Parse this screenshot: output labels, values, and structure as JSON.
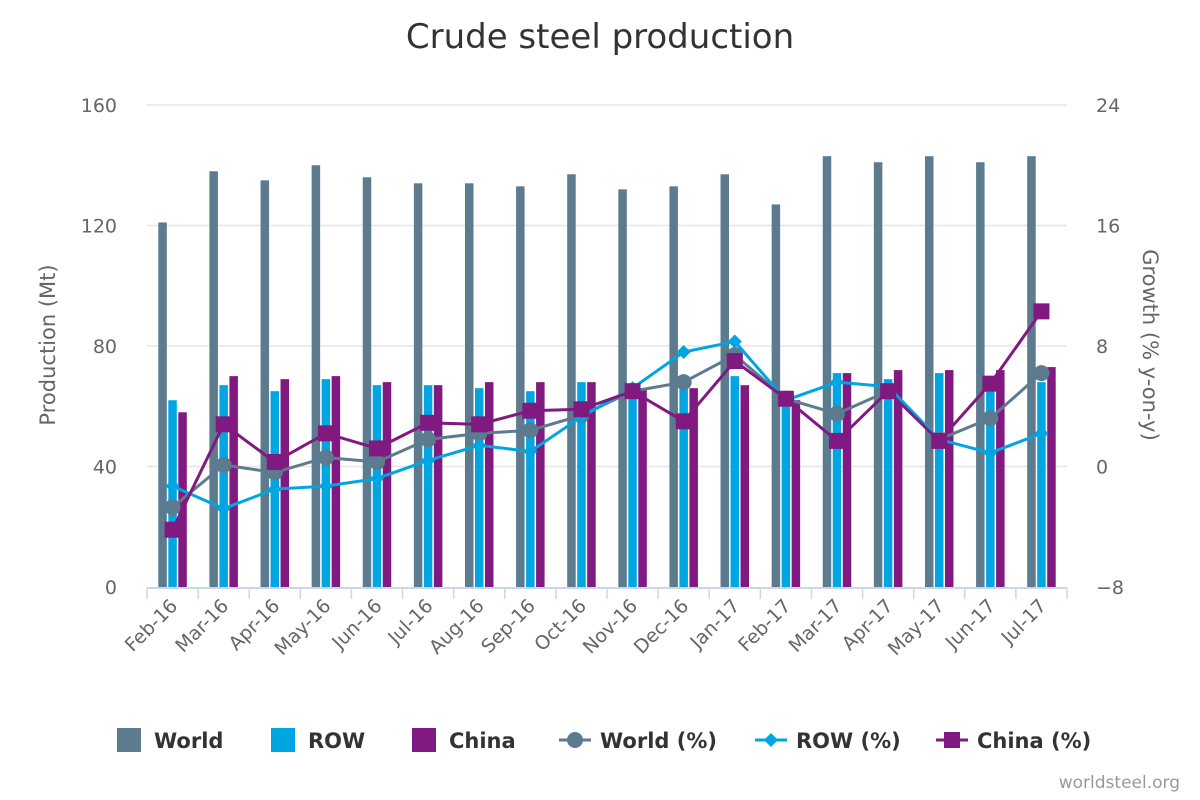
{
  "chart_data": {
    "type": "bar",
    "title": "Crude steel production",
    "ylabel_left": "Production (Mt)",
    "ylabel_right": "Growth (% y-on-y)",
    "ylim_left": [
      0,
      160
    ],
    "yticks_left": [
      "0",
      "40",
      "80",
      "120",
      "160"
    ],
    "ylim_right": [
      -8,
      24
    ],
    "yticks_right": [
      "−8",
      "0",
      "8",
      "16",
      "24"
    ],
    "grid": true,
    "legend_position": "bottom",
    "categories": [
      "Feb-16",
      "Mar-16",
      "Apr-16",
      "May-16",
      "Jun-16",
      "Jul-16",
      "Aug-16",
      "Sep-16",
      "Oct-16",
      "Nov-16",
      "Dec-16",
      "Jan-17",
      "Feb-17",
      "Mar-17",
      "Apr-17",
      "May-17",
      "Jun-17",
      "Jul-17"
    ],
    "bar_series": [
      {
        "name": "World",
        "color": "#5c7b8f",
        "axis": "left",
        "values": [
          121,
          138,
          135,
          140,
          136,
          134,
          134,
          133,
          137,
          132,
          133,
          137,
          127,
          143,
          141,
          143,
          141,
          143
        ]
      },
      {
        "name": "ROW",
        "color": "#00a6e2",
        "axis": "left",
        "values": [
          62,
          67,
          65,
          69,
          67,
          67,
          66,
          65,
          68,
          65,
          68,
          70,
          64,
          71,
          69,
          71,
          69,
          68
        ]
      },
      {
        "name": "China",
        "color": "#801a80",
        "axis": "left",
        "values": [
          58,
          70,
          69,
          70,
          68,
          67,
          68,
          68,
          68,
          66,
          66,
          67,
          62,
          71,
          72,
          72,
          72,
          73
        ]
      }
    ],
    "line_series": [
      {
        "name": "World (%)",
        "color": "#5c7b8f",
        "marker": "circle",
        "axis": "right",
        "values": [
          -2.7,
          0.1,
          -0.4,
          0.6,
          0.3,
          1.8,
          2.2,
          2.4,
          3.4,
          5.0,
          5.6,
          7.4,
          4.5,
          3.5,
          5.0,
          1.8,
          3.2,
          6.2
        ]
      },
      {
        "name": "ROW (%)",
        "color": "#00a6e2",
        "marker": "diamond",
        "axis": "right",
        "values": [
          -1.3,
          -2.8,
          -1.5,
          -1.3,
          -0.8,
          0.4,
          1.4,
          1.0,
          3.3,
          5.2,
          7.6,
          8.3,
          4.4,
          5.6,
          5.3,
          1.8,
          0.9,
          2.2
        ]
      },
      {
        "name": "China (%)",
        "color": "#801a80",
        "marker": "square",
        "axis": "right",
        "values": [
          -4.2,
          2.8,
          0.3,
          2.2,
          1.2,
          2.9,
          2.8,
          3.7,
          3.8,
          5.0,
          3.0,
          7.0,
          4.5,
          1.7,
          5.0,
          1.7,
          5.5,
          10.3
        ]
      }
    ]
  },
  "credit": "worldsteel.org"
}
